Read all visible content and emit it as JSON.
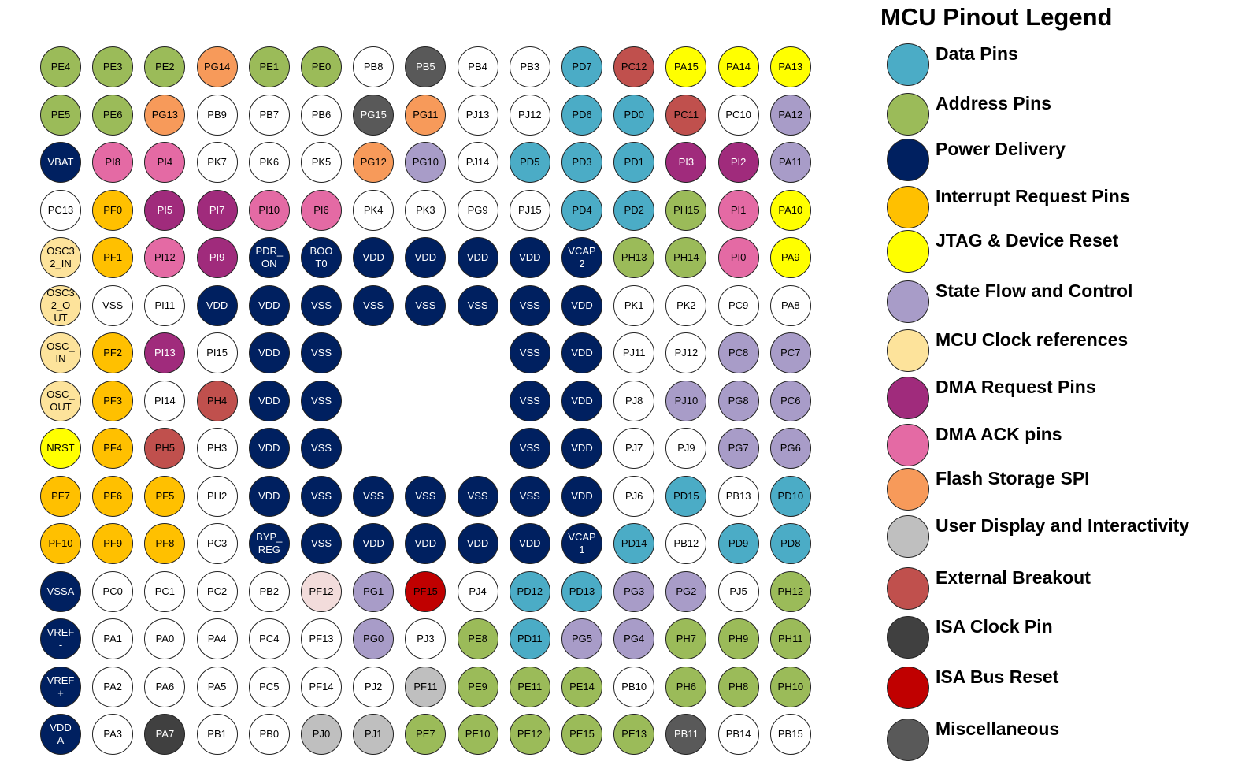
{
  "legend": {
    "title": "MCU Pinout Legend",
    "items": [
      {
        "key": "data",
        "label": "Data Pins",
        "color": "#4bacc6"
      },
      {
        "key": "address",
        "label": "Address Pins",
        "color": "#9bbb59"
      },
      {
        "key": "power",
        "label": "Power Delivery",
        "color": "#002060"
      },
      {
        "key": "irq",
        "label": "Interrupt Request Pins",
        "color": "#ffc000"
      },
      {
        "key": "jtag",
        "label": "JTAG & Device Reset",
        "color": "#ffff00"
      },
      {
        "key": "state",
        "label": "State Flow and Control",
        "color": "#a89cc8"
      },
      {
        "key": "clock",
        "label": "MCU Clock references",
        "color": "#fde39b"
      },
      {
        "key": "dma_req",
        "label": "DMA Request Pins",
        "color": "#a02b7c"
      },
      {
        "key": "dma_ack",
        "label": "DMA ACK pins",
        "color": "#e46aa4"
      },
      {
        "key": "flash",
        "label": "Flash Storage SPI",
        "color": "#f79a5a"
      },
      {
        "key": "display",
        "label": "User Display and Interactivity",
        "color": "#bfbfbf"
      },
      {
        "key": "breakout",
        "label": "External Breakout",
        "color": "#c0504d"
      },
      {
        "key": "isa_clock",
        "label": "ISA Clock Pin",
        "color": "#404040"
      },
      {
        "key": "isa_reset",
        "label": "ISA Bus Reset",
        "color": "#c00000"
      },
      {
        "key": "misc",
        "label": "Miscellaneous",
        "color": "#595959"
      }
    ],
    "extra_colors": {
      "none": "#ffffff",
      "pale": "#f2dcdb"
    }
  },
  "pins": [
    [
      [
        "PE4",
        "address"
      ],
      [
        "PE3",
        "address"
      ],
      [
        "PE2",
        "address"
      ],
      [
        "PG14",
        "flash"
      ],
      [
        "PE1",
        "address"
      ],
      [
        "PE0",
        "address"
      ],
      [
        "PB8",
        "none"
      ],
      [
        "PB5",
        "misc"
      ],
      [
        "PB4",
        "none"
      ],
      [
        "PB3",
        "none"
      ],
      [
        "PD7",
        "data"
      ],
      [
        "PC12",
        "breakout"
      ],
      [
        "PA15",
        "jtag"
      ],
      [
        "PA14",
        "jtag"
      ],
      [
        "PA13",
        "jtag"
      ]
    ],
    [
      [
        "PE5",
        "address"
      ],
      [
        "PE6",
        "address"
      ],
      [
        "PG13",
        "flash"
      ],
      [
        "PB9",
        "none"
      ],
      [
        "PB7",
        "none"
      ],
      [
        "PB6",
        "none"
      ],
      [
        "PG15",
        "misc"
      ],
      [
        "PG11",
        "flash"
      ],
      [
        "PJ13",
        "none"
      ],
      [
        "PJ12",
        "none"
      ],
      [
        "PD6",
        "data"
      ],
      [
        "PD0",
        "data"
      ],
      [
        "PC11",
        "breakout"
      ],
      [
        "PC10",
        "none"
      ],
      [
        "PA12",
        "state"
      ]
    ],
    [
      [
        "VBAT",
        "power"
      ],
      [
        "PI8",
        "dma_ack"
      ],
      [
        "PI4",
        "dma_ack"
      ],
      [
        "PK7",
        "none"
      ],
      [
        "PK6",
        "none"
      ],
      [
        "PK5",
        "none"
      ],
      [
        "PG12",
        "flash"
      ],
      [
        "PG10",
        "state"
      ],
      [
        "PJ14",
        "none"
      ],
      [
        "PD5",
        "data"
      ],
      [
        "PD3",
        "data"
      ],
      [
        "PD1",
        "data"
      ],
      [
        "PI3",
        "dma_req"
      ],
      [
        "PI2",
        "dma_req"
      ],
      [
        "PA11",
        "state"
      ]
    ],
    [
      [
        "PC13",
        "none"
      ],
      [
        "PF0",
        "irq"
      ],
      [
        "PI5",
        "dma_req"
      ],
      [
        "PI7",
        "dma_req"
      ],
      [
        "PI10",
        "dma_ack"
      ],
      [
        "PI6",
        "dma_ack"
      ],
      [
        "PK4",
        "none"
      ],
      [
        "PK3",
        "none"
      ],
      [
        "PG9",
        "none"
      ],
      [
        "PJ15",
        "none"
      ],
      [
        "PD4",
        "data"
      ],
      [
        "PD2",
        "data"
      ],
      [
        "PH15",
        "address"
      ],
      [
        "PI1",
        "dma_ack"
      ],
      [
        "PA10",
        "jtag"
      ]
    ],
    [
      [
        "OSC3\n2_IN",
        "clock"
      ],
      [
        "PF1",
        "irq"
      ],
      [
        "PI12",
        "dma_ack"
      ],
      [
        "PI9",
        "dma_req"
      ],
      [
        "PDR_\nON",
        "power"
      ],
      [
        "BOO\nT0",
        "power"
      ],
      [
        "VDD",
        "power"
      ],
      [
        "VDD",
        "power"
      ],
      [
        "VDD",
        "power"
      ],
      [
        "VDD",
        "power"
      ],
      [
        "VCAP\n2",
        "power"
      ],
      [
        "PH13",
        "address"
      ],
      [
        "PH14",
        "address"
      ],
      [
        "PI0",
        "dma_ack"
      ],
      [
        "PA9",
        "jtag"
      ]
    ],
    [
      [
        "OSC3\n2_O\nUT",
        "clock"
      ],
      [
        "VSS",
        "none"
      ],
      [
        "PI11",
        "none"
      ],
      [
        "VDD",
        "power"
      ],
      [
        "VDD",
        "power"
      ],
      [
        "VSS",
        "power"
      ],
      [
        "VSS",
        "power"
      ],
      [
        "VSS",
        "power"
      ],
      [
        "VSS",
        "power"
      ],
      [
        "VSS",
        "power"
      ],
      [
        "VDD",
        "power"
      ],
      [
        "PK1",
        "none"
      ],
      [
        "PK2",
        "none"
      ],
      [
        "PC9",
        "none"
      ],
      [
        "PA8",
        "none"
      ]
    ],
    [
      [
        "OSC_\nIN",
        "clock"
      ],
      [
        "PF2",
        "irq"
      ],
      [
        "PI13",
        "dma_req"
      ],
      [
        "PI15",
        "none"
      ],
      [
        "VDD",
        "power"
      ],
      [
        "VSS",
        "power"
      ],
      null,
      null,
      null,
      [
        "VSS",
        "power"
      ],
      [
        "VDD",
        "power"
      ],
      [
        "PJ11",
        "none"
      ],
      [
        "PJ12",
        "none"
      ],
      [
        "PC8",
        "state"
      ],
      [
        "PC7",
        "state"
      ]
    ],
    [
      [
        "OSC_\nOUT",
        "clock"
      ],
      [
        "PF3",
        "irq"
      ],
      [
        "PI14",
        "none"
      ],
      [
        "PH4",
        "breakout"
      ],
      [
        "VDD",
        "power"
      ],
      [
        "VSS",
        "power"
      ],
      null,
      null,
      null,
      [
        "VSS",
        "power"
      ],
      [
        "VDD",
        "power"
      ],
      [
        "PJ8",
        "none"
      ],
      [
        "PJ10",
        "state"
      ],
      [
        "PG8",
        "state"
      ],
      [
        "PC6",
        "state"
      ]
    ],
    [
      [
        "NRST",
        "jtag"
      ],
      [
        "PF4",
        "irq"
      ],
      [
        "PH5",
        "breakout"
      ],
      [
        "PH3",
        "none"
      ],
      [
        "VDD",
        "power"
      ],
      [
        "VSS",
        "power"
      ],
      null,
      null,
      null,
      [
        "VSS",
        "power"
      ],
      [
        "VDD",
        "power"
      ],
      [
        "PJ7",
        "none"
      ],
      [
        "PJ9",
        "none"
      ],
      [
        "PG7",
        "state"
      ],
      [
        "PG6",
        "state"
      ]
    ],
    [
      [
        "PF7",
        "irq"
      ],
      [
        "PF6",
        "irq"
      ],
      [
        "PF5",
        "irq"
      ],
      [
        "PH2",
        "none"
      ],
      [
        "VDD",
        "power"
      ],
      [
        "VSS",
        "power"
      ],
      [
        "VSS",
        "power"
      ],
      [
        "VSS",
        "power"
      ],
      [
        "VSS",
        "power"
      ],
      [
        "VSS",
        "power"
      ],
      [
        "VDD",
        "power"
      ],
      [
        "PJ6",
        "none"
      ],
      [
        "PD15",
        "data"
      ],
      [
        "PB13",
        "none"
      ],
      [
        "PD10",
        "data"
      ]
    ],
    [
      [
        "PF10",
        "irq"
      ],
      [
        "PF9",
        "irq"
      ],
      [
        "PF8",
        "irq"
      ],
      [
        "PC3",
        "none"
      ],
      [
        "BYP_\nREG",
        "power"
      ],
      [
        "VSS",
        "power"
      ],
      [
        "VDD",
        "power"
      ],
      [
        "VDD",
        "power"
      ],
      [
        "VDD",
        "power"
      ],
      [
        "VDD",
        "power"
      ],
      [
        "VCAP\n1",
        "power"
      ],
      [
        "PD14",
        "data"
      ],
      [
        "PB12",
        "none"
      ],
      [
        "PD9",
        "data"
      ],
      [
        "PD8",
        "data"
      ]
    ],
    [
      [
        "VSSA",
        "power"
      ],
      [
        "PC0",
        "none"
      ],
      [
        "PC1",
        "none"
      ],
      [
        "PC2",
        "none"
      ],
      [
        "PB2",
        "none"
      ],
      [
        "PF12",
        "pale"
      ],
      [
        "PG1",
        "state"
      ],
      [
        "PF15",
        "isa_reset"
      ],
      [
        "PJ4",
        "none"
      ],
      [
        "PD12",
        "data"
      ],
      [
        "PD13",
        "data"
      ],
      [
        "PG3",
        "state"
      ],
      [
        "PG2",
        "state"
      ],
      [
        "PJ5",
        "none"
      ],
      [
        "PH12",
        "address"
      ]
    ],
    [
      [
        "VREF\n-",
        "power"
      ],
      [
        "PA1",
        "none"
      ],
      [
        "PA0",
        "none"
      ],
      [
        "PA4",
        "none"
      ],
      [
        "PC4",
        "none"
      ],
      [
        "PF13",
        "none"
      ],
      [
        "PG0",
        "state"
      ],
      [
        "PJ3",
        "none"
      ],
      [
        "PE8",
        "address"
      ],
      [
        "PD11",
        "data"
      ],
      [
        "PG5",
        "state"
      ],
      [
        "PG4",
        "state"
      ],
      [
        "PH7",
        "address"
      ],
      [
        "PH9",
        "address"
      ],
      [
        "PH11",
        "address"
      ]
    ],
    [
      [
        "VREF\n+",
        "power"
      ],
      [
        "PA2",
        "none"
      ],
      [
        "PA6",
        "none"
      ],
      [
        "PA5",
        "none"
      ],
      [
        "PC5",
        "none"
      ],
      [
        "PF14",
        "none"
      ],
      [
        "PJ2",
        "none"
      ],
      [
        "PF11",
        "display"
      ],
      [
        "PE9",
        "address"
      ],
      [
        "PE11",
        "address"
      ],
      [
        "PE14",
        "address"
      ],
      [
        "PB10",
        "none"
      ],
      [
        "PH6",
        "address"
      ],
      [
        "PH8",
        "address"
      ],
      [
        "PH10",
        "address"
      ]
    ],
    [
      [
        "VDD\nA",
        "power"
      ],
      [
        "PA3",
        "none"
      ],
      [
        "PA7",
        "isa_clock"
      ],
      [
        "PB1",
        "none"
      ],
      [
        "PB0",
        "none"
      ],
      [
        "PJ0",
        "display"
      ],
      [
        "PJ1",
        "display"
      ],
      [
        "PE7",
        "address"
      ],
      [
        "PE10",
        "address"
      ],
      [
        "PE12",
        "address"
      ],
      [
        "PE15",
        "address"
      ],
      [
        "PE13",
        "address"
      ],
      [
        "PB11",
        "misc"
      ],
      [
        "PB14",
        "none"
      ],
      [
        "PB15",
        "none"
      ]
    ]
  ]
}
